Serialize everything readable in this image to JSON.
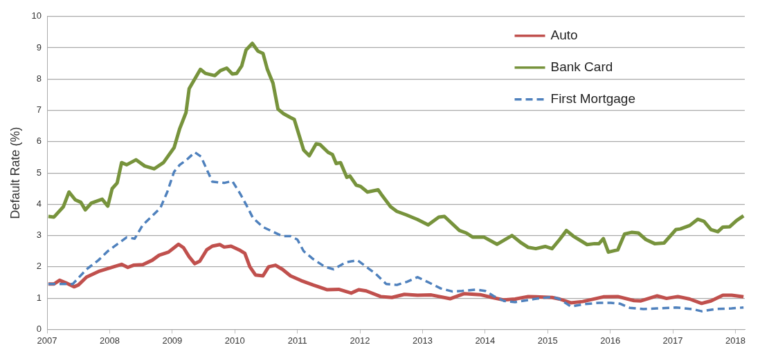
{
  "chart_data": {
    "type": "line",
    "ylabel": "Default Rate (%)",
    "xlim": [
      2007,
      2018.15
    ],
    "xticks": [
      2007,
      2008,
      2009,
      2010,
      2011,
      2012,
      2013,
      2014,
      2015,
      2016,
      2017,
      2018
    ],
    "ylim": [
      0,
      10
    ],
    "yticks": [
      0,
      1,
      2,
      3,
      4,
      5,
      6,
      7,
      8,
      9,
      10
    ],
    "grid": "y",
    "legend": "top right",
    "marker": "none",
    "series": [
      {
        "name": "Auto",
        "color": "#c0504d",
        "line_style": "solid",
        "x": [
          2007.02,
          2007.11,
          2007.2,
          2007.3,
          2007.43,
          2007.5,
          2007.63,
          2007.82,
          2008.0,
          2008.19,
          2008.29,
          2008.38,
          2008.53,
          2008.68,
          2008.79,
          2008.94,
          2009.1,
          2009.18,
          2009.27,
          2009.36,
          2009.44,
          2009.55,
          2009.64,
          2009.76,
          2009.83,
          2009.94,
          2010.07,
          2010.16,
          2010.24,
          2010.33,
          2010.45,
          2010.54,
          2010.65,
          2010.76,
          2010.89,
          2011.06,
          2011.25,
          2011.47,
          2011.66,
          2011.86,
          2011.98,
          2012.1,
          2012.33,
          2012.51,
          2012.71,
          2012.92,
          2013.14,
          2013.44,
          2013.66,
          2013.92,
          2014.11,
          2014.3,
          2014.48,
          2014.69,
          2014.81,
          2015.07,
          2015.19,
          2015.37,
          2015.56,
          2015.89,
          2016.12,
          2016.38,
          2016.49,
          2016.75,
          2016.9,
          2017.08,
          2017.27,
          2017.46,
          2017.61,
          2017.8,
          2017.94,
          2018.13
        ],
        "values": [
          1.45,
          1.45,
          1.57,
          1.49,
          1.36,
          1.42,
          1.67,
          1.85,
          1.96,
          2.08,
          1.98,
          2.05,
          2.07,
          2.21,
          2.37,
          2.47,
          2.72,
          2.61,
          2.32,
          2.1,
          2.18,
          2.54,
          2.66,
          2.71,
          2.63,
          2.66,
          2.54,
          2.43,
          2.0,
          1.74,
          1.71,
          2.0,
          2.05,
          1.92,
          1.71,
          1.56,
          1.42,
          1.27,
          1.28,
          1.16,
          1.27,
          1.23,
          1.05,
          1.02,
          1.12,
          1.09,
          1.1,
          0.98,
          1.14,
          1.11,
          1.02,
          0.94,
          0.97,
          1.05,
          1.04,
          1.02,
          0.97,
          0.85,
          0.89,
          1.04,
          1.05,
          0.92,
          0.91,
          1.07,
          0.99,
          1.05,
          0.97,
          0.83,
          0.91,
          1.09,
          1.09,
          1.04
        ]
      },
      {
        "name": "Bank Card",
        "color": "#77933c",
        "line_style": "solid",
        "x": [
          2007.02,
          2007.11,
          2007.26,
          2007.35,
          2007.45,
          2007.54,
          2007.61,
          2007.71,
          2007.88,
          2007.97,
          2008.04,
          2008.12,
          2008.19,
          2008.27,
          2008.42,
          2008.56,
          2008.71,
          2008.86,
          2009.03,
          2009.12,
          2009.22,
          2009.27,
          2009.45,
          2009.53,
          2009.68,
          2009.77,
          2009.87,
          2009.96,
          2010.03,
          2010.11,
          2010.18,
          2010.28,
          2010.37,
          2010.45,
          2010.52,
          2010.61,
          2010.69,
          2010.78,
          2010.89,
          2010.95,
          2011.1,
          2011.19,
          2011.3,
          2011.36,
          2011.49,
          2011.56,
          2011.62,
          2011.69,
          2011.79,
          2011.84,
          2011.94,
          2012.01,
          2012.12,
          2012.29,
          2012.34,
          2012.49,
          2012.59,
          2012.74,
          2012.92,
          2013.09,
          2013.26,
          2013.35,
          2013.59,
          2013.7,
          2013.8,
          2013.98,
          2014.19,
          2014.43,
          2014.58,
          2014.69,
          2014.81,
          2014.96,
          2015.07,
          2015.19,
          2015.3,
          2015.41,
          2015.63,
          2015.75,
          2015.82,
          2015.89,
          2015.97,
          2016.12,
          2016.23,
          2016.34,
          2016.45,
          2016.57,
          2016.71,
          2016.86,
          2017.05,
          2017.12,
          2017.27,
          2017.4,
          2017.5,
          2017.61,
          2017.72,
          2017.8,
          2017.91,
          2018.02,
          2018.13
        ],
        "values": [
          3.61,
          3.59,
          3.92,
          4.39,
          4.14,
          4.06,
          3.82,
          4.04,
          4.16,
          3.94,
          4.5,
          4.68,
          5.33,
          5.26,
          5.42,
          5.22,
          5.13,
          5.33,
          5.81,
          6.42,
          6.93,
          7.69,
          8.31,
          8.18,
          8.11,
          8.27,
          8.35,
          8.16,
          8.18,
          8.42,
          8.93,
          9.14,
          8.89,
          8.82,
          8.31,
          7.87,
          7.04,
          6.89,
          6.77,
          6.71,
          5.73,
          5.55,
          5.93,
          5.91,
          5.66,
          5.59,
          5.3,
          5.33,
          4.86,
          4.9,
          4.61,
          4.57,
          4.39,
          4.46,
          4.32,
          3.92,
          3.77,
          3.66,
          3.51,
          3.34,
          3.59,
          3.61,
          3.16,
          3.08,
          2.95,
          2.95,
          2.72,
          3.0,
          2.76,
          2.62,
          2.58,
          2.65,
          2.58,
          2.87,
          3.16,
          2.98,
          2.71,
          2.74,
          2.74,
          2.9,
          2.47,
          2.54,
          3.05,
          3.1,
          3.08,
          2.87,
          2.74,
          2.76,
          3.19,
          3.21,
          3.32,
          3.52,
          3.45,
          3.19,
          3.12,
          3.27,
          3.28,
          3.48,
          3.63
        ]
      },
      {
        "name": "First Mortgage",
        "color": "#4f81bd",
        "line_style": "dashed",
        "x": [
          2007.02,
          2007.19,
          2007.41,
          2007.63,
          2007.82,
          2007.97,
          2008.1,
          2008.27,
          2008.4,
          2008.53,
          2008.66,
          2008.81,
          2008.92,
          2009.03,
          2009.12,
          2009.23,
          2009.36,
          2009.46,
          2009.55,
          2009.64,
          2009.83,
          2009.96,
          2010.09,
          2010.18,
          2010.29,
          2010.45,
          2010.61,
          2010.76,
          2010.89,
          2011.0,
          2011.1,
          2011.25,
          2011.44,
          2011.58,
          2011.77,
          2011.96,
          2012.1,
          2012.25,
          2012.42,
          2012.59,
          2012.75,
          2012.92,
          2013.11,
          2013.29,
          2013.48,
          2013.63,
          2013.85,
          2014.0,
          2014.15,
          2014.3,
          2014.48,
          2014.69,
          2014.78,
          2015.07,
          2015.19,
          2015.37,
          2015.56,
          2015.82,
          2016.01,
          2016.16,
          2016.31,
          2016.53,
          2016.75,
          2017.05,
          2017.31,
          2017.46,
          2017.68,
          2017.94,
          2018.13
        ],
        "values": [
          1.45,
          1.45,
          1.45,
          1.92,
          2.21,
          2.5,
          2.69,
          2.94,
          2.9,
          3.34,
          3.59,
          3.88,
          4.39,
          5.04,
          5.26,
          5.42,
          5.66,
          5.52,
          5.12,
          4.72,
          4.68,
          4.74,
          4.32,
          3.99,
          3.56,
          3.27,
          3.12,
          2.98,
          2.98,
          2.87,
          2.5,
          2.25,
          2.0,
          1.92,
          2.14,
          2.21,
          2.0,
          1.78,
          1.45,
          1.42,
          1.52,
          1.67,
          1.49,
          1.31,
          1.21,
          1.23,
          1.27,
          1.23,
          1.05,
          0.91,
          0.87,
          0.94,
          0.97,
          1.04,
          0.97,
          0.73,
          0.8,
          0.85,
          0.85,
          0.82,
          0.69,
          0.65,
          0.67,
          0.7,
          0.65,
          0.58,
          0.65,
          0.67,
          0.7
        ]
      }
    ]
  }
}
